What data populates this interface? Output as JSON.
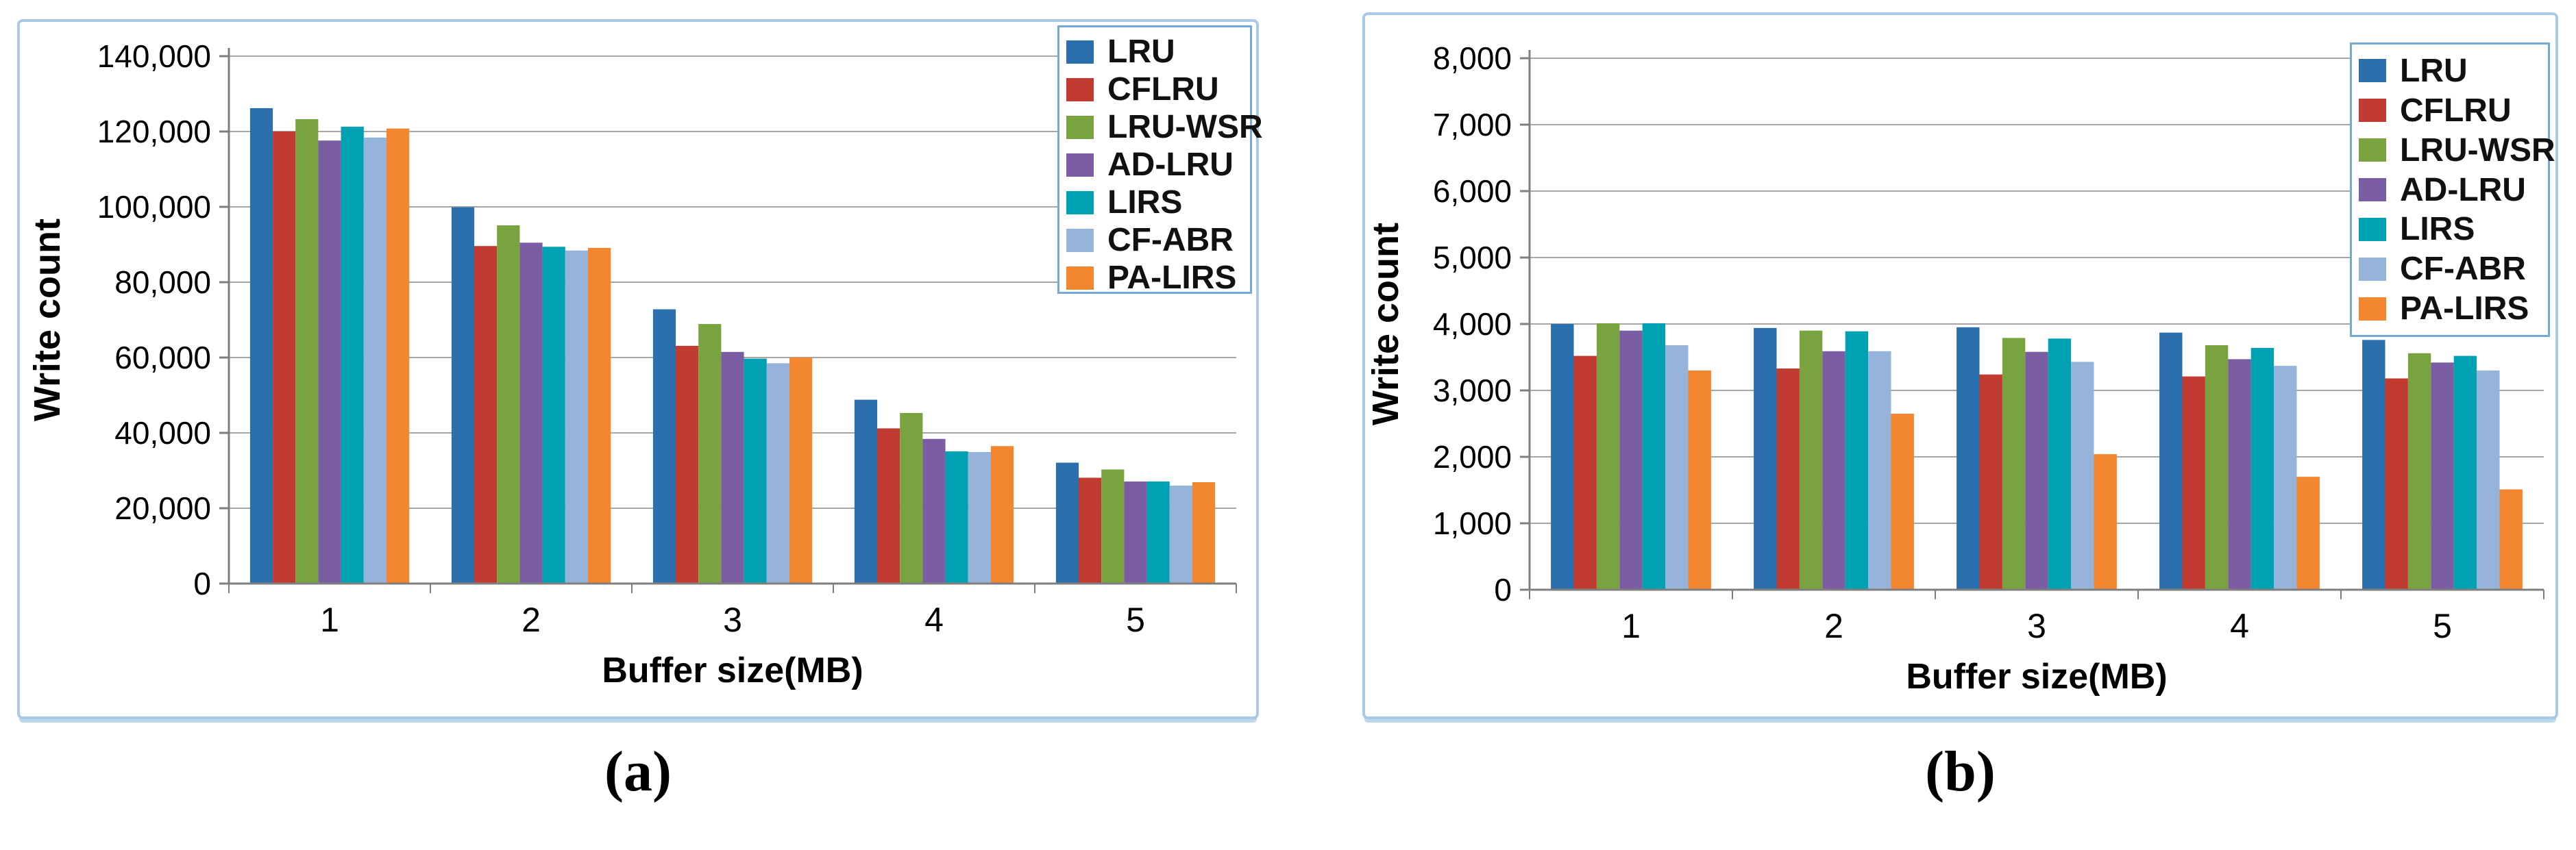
{
  "figure": {
    "captions": {
      "a": "(a)",
      "b": "(b)"
    }
  },
  "colors": {
    "panel_border": "#a9c9e6",
    "legend_border": "#74a9d8",
    "gridline": "#a6a6a6",
    "axis": "#7f7f7f",
    "text": "#000000"
  },
  "chart_data": [
    {
      "id": "a",
      "type": "bar",
      "title": "",
      "xlabel": "Buffer size(MB)",
      "ylabel": "Write count",
      "categories": [
        "1",
        "2",
        "3",
        "4",
        "5"
      ],
      "ylim": [
        0,
        140000
      ],
      "ytick_step": 20000,
      "grid": true,
      "legend_position": "top-right",
      "series": [
        {
          "name": "LRU",
          "color": "#2c6fad",
          "values": [
            126200,
            99900,
            72800,
            48800,
            32100
          ]
        },
        {
          "name": "CFLRU",
          "color": "#c13b30",
          "values": [
            120000,
            89600,
            63100,
            41200,
            28100
          ]
        },
        {
          "name": "LRU-WSR",
          "color": "#79a33e",
          "values": [
            123300,
            95100,
            68900,
            45300,
            30300
          ]
        },
        {
          "name": "AD-LRU",
          "color": "#7a5da3",
          "values": [
            117600,
            90500,
            61500,
            38400,
            27100
          ]
        },
        {
          "name": "LIRS",
          "color": "#00a1b3",
          "values": [
            121300,
            89400,
            59700,
            35100,
            27100
          ]
        },
        {
          "name": "CF-ABR",
          "color": "#96b3d9",
          "values": [
            118400,
            88400,
            58500,
            34900,
            26000
          ]
        },
        {
          "name": "PA-LIRS",
          "color": "#f3872f",
          "values": [
            120800,
            89100,
            60000,
            36500,
            26900
          ]
        }
      ]
    },
    {
      "id": "b",
      "type": "bar",
      "title": "",
      "xlabel": "Buffer size(MB)",
      "ylabel": "Write count",
      "categories": [
        "1",
        "2",
        "3",
        "4",
        "5"
      ],
      "ylim": [
        0,
        8000
      ],
      "ytick_step": 1000,
      "grid": true,
      "legend_position": "top-right",
      "series": [
        {
          "name": "LRU",
          "color": "#2c6fad",
          "values": [
            4000,
            3940,
            3950,
            3870,
            3760
          ]
        },
        {
          "name": "CFLRU",
          "color": "#c13b30",
          "values": [
            3520,
            3330,
            3240,
            3210,
            3180
          ]
        },
        {
          "name": "LRU-WSR",
          "color": "#79a33e",
          "values": [
            4010,
            3900,
            3790,
            3680,
            3560
          ]
        },
        {
          "name": "AD-LRU",
          "color": "#7a5da3",
          "values": [
            3900,
            3590,
            3580,
            3470,
            3420
          ]
        },
        {
          "name": "LIRS",
          "color": "#00a1b3",
          "values": [
            4010,
            3890,
            3780,
            3640,
            3520
          ]
        },
        {
          "name": "CF-ABR",
          "color": "#96b3d9",
          "values": [
            3680,
            3590,
            3430,
            3370,
            3300
          ]
        },
        {
          "name": "PA-LIRS",
          "color": "#f3872f",
          "values": [
            3300,
            2650,
            2040,
            1700,
            1510
          ]
        }
      ]
    }
  ]
}
